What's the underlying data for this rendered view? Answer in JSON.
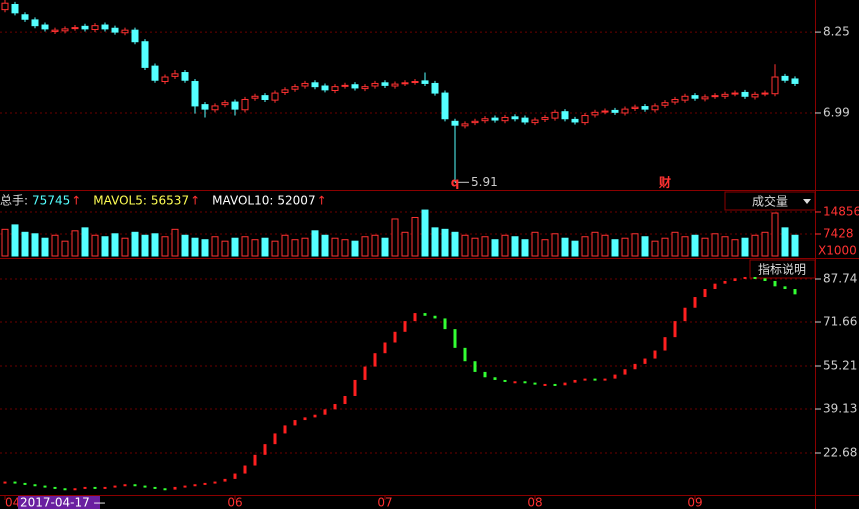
{
  "chart_data": [
    {
      "type": "candlestick",
      "rise_color": "#ff3232",
      "fall_color": "#54ffff",
      "open": [
        8.6,
        8.68,
        8.52,
        8.44,
        8.36,
        8.26,
        8.27,
        8.31,
        8.34,
        8.29,
        8.36,
        8.31,
        8.24,
        8.28,
        8.1,
        7.72,
        7.48,
        7.56,
        7.62,
        7.48,
        7.12,
        7.04,
        7.12,
        7.16,
        7.04,
        7.22,
        7.26,
        7.19,
        7.31,
        7.36,
        7.41,
        7.46,
        7.41,
        7.34,
        7.41,
        7.43,
        7.37,
        7.41,
        7.46,
        7.41,
        7.45,
        7.47,
        7.49,
        7.45,
        7.3,
        6.86,
        6.79,
        6.84,
        6.87,
        6.91,
        6.87,
        6.93,
        6.91,
        6.84,
        6.89,
        6.91,
        7.01,
        6.89,
        6.84,
        6.96,
        7.01,
        7.03,
        6.99,
        7.06,
        7.09,
        7.04,
        7.11,
        7.16,
        7.19,
        7.26,
        7.21,
        7.25,
        7.25,
        7.29,
        7.31,
        7.24,
        7.29,
        7.29,
        7.56,
        7.52
      ],
      "high": [
        8.75,
        8.72,
        8.56,
        8.48,
        8.4,
        8.32,
        8.34,
        8.36,
        8.38,
        8.39,
        8.4,
        8.35,
        8.32,
        8.32,
        8.14,
        7.76,
        7.59,
        7.66,
        7.66,
        7.52,
        7.16,
        7.14,
        7.19,
        7.2,
        7.24,
        7.29,
        7.3,
        7.34,
        7.39,
        7.44,
        7.49,
        7.5,
        7.45,
        7.44,
        7.46,
        7.47,
        7.44,
        7.49,
        7.5,
        7.48,
        7.5,
        7.52,
        7.62,
        7.49,
        7.34,
        6.9,
        6.86,
        6.9,
        6.94,
        6.95,
        6.96,
        6.97,
        6.95,
        6.92,
        6.96,
        7.04,
        7.05,
        6.93,
        6.99,
        7.04,
        7.06,
        7.07,
        7.09,
        7.12,
        7.13,
        7.14,
        7.19,
        7.24,
        7.29,
        7.3,
        7.28,
        7.3,
        7.32,
        7.34,
        7.35,
        7.32,
        7.34,
        7.75,
        7.6,
        7.56
      ],
      "low": [
        8.56,
        8.51,
        8.41,
        8.31,
        8.26,
        8.22,
        8.23,
        8.27,
        8.26,
        8.25,
        8.26,
        8.21,
        8.2,
        8.06,
        7.66,
        7.46,
        7.44,
        7.52,
        7.46,
        6.98,
        6.92,
        7.0,
        7.08,
        6.95,
        7.0,
        7.18,
        7.16,
        7.15,
        7.27,
        7.32,
        7.37,
        7.36,
        7.31,
        7.3,
        7.37,
        7.34,
        7.33,
        7.37,
        7.38,
        7.37,
        7.41,
        7.43,
        7.41,
        7.26,
        6.86,
        5.91,
        6.75,
        6.8,
        6.83,
        6.84,
        6.83,
        6.86,
        6.81,
        6.8,
        6.85,
        6.87,
        6.86,
        6.81,
        6.8,
        6.92,
        6.97,
        6.96,
        6.95,
        7.02,
        7.01,
        7.0,
        7.07,
        7.12,
        7.15,
        7.18,
        7.17,
        7.21,
        7.21,
        7.25,
        7.21,
        7.2,
        7.25,
        7.25,
        7.46,
        7.41
      ],
      "close": [
        8.7,
        8.55,
        8.45,
        8.35,
        8.3,
        8.28,
        8.3,
        8.32,
        8.3,
        8.35,
        8.3,
        8.25,
        8.28,
        8.1,
        7.7,
        7.5,
        7.55,
        7.6,
        7.5,
        7.1,
        7.05,
        7.1,
        7.15,
        7.05,
        7.2,
        7.25,
        7.2,
        7.3,
        7.35,
        7.4,
        7.45,
        7.4,
        7.35,
        7.4,
        7.42,
        7.38,
        7.4,
        7.45,
        7.42,
        7.44,
        7.46,
        7.48,
        7.45,
        7.3,
        6.9,
        6.8,
        6.82,
        6.86,
        6.9,
        6.88,
        6.92,
        6.9,
        6.85,
        6.88,
        6.92,
        7.0,
        6.9,
        6.85,
        6.95,
        7.0,
        7.02,
        7.0,
        7.05,
        7.08,
        7.05,
        7.1,
        7.15,
        7.2,
        7.25,
        7.22,
        7.24,
        7.26,
        7.28,
        7.3,
        7.25,
        7.28,
        7.3,
        7.55,
        7.5,
        7.45
      ],
      "ylim": [
        5.79,
        8.75
      ],
      "yticks": [
        8.25,
        6.99
      ],
      "markers": [
        {
          "index": 45,
          "text": "q"
        },
        {
          "index": 66,
          "text": "财"
        }
      ]
    },
    {
      "type": "bar",
      "dropdown": "成交量",
      "arrow": "↑",
      "legend": [
        {
          "name": "总手:",
          "value": 75745,
          "color": "#54ffff"
        },
        {
          "name": "MAVOL5:",
          "value": 56537,
          "color": "#ffff54"
        },
        {
          "name": "MAVOL10:",
          "value": 52007,
          "color": "#ffffff"
        }
      ],
      "values": [
        9000,
        10500,
        8000,
        7500,
        6000,
        7000,
        5000,
        8500,
        9500,
        7000,
        6500,
        7500,
        6000,
        8000,
        7000,
        7500,
        6500,
        9000,
        7000,
        6000,
        5500,
        6500,
        5000,
        6000,
        6500,
        5500,
        6000,
        5000,
        7000,
        5500,
        6000,
        8500,
        7000,
        6000,
        5500,
        5000,
        6500,
        7000,
        6000,
        12500,
        8000,
        13000,
        15500,
        9500,
        9000,
        8000,
        7000,
        6000,
        6500,
        5500,
        7000,
        6500,
        5500,
        8000,
        5500,
        7500,
        6000,
        5000,
        6500,
        8000,
        7000,
        5500,
        6000,
        7500,
        6500,
        5000,
        6000,
        8000,
        6500,
        7000,
        6000,
        7500,
        6500,
        5500,
        6000,
        7000,
        8000,
        14500,
        9500,
        7000
      ],
      "ylim": [
        0,
        16200
      ],
      "yticks": [
        7428,
        14856
      ],
      "unit_label": "X1000"
    },
    {
      "type": "indicator",
      "rise_color": "#ff2020",
      "fall_color": "#33ff33",
      "button": "指标说明",
      "values": [
        12,
        11.5,
        11,
        10.5,
        10,
        9.5,
        9,
        9.5,
        10,
        9.5,
        10,
        10.5,
        11,
        10.5,
        10,
        9.5,
        9,
        10,
        10.5,
        11,
        11.5,
        12,
        13,
        15,
        18,
        22,
        26,
        30,
        33,
        35,
        36,
        37,
        39,
        41,
        44,
        50,
        55,
        60,
        64,
        68,
        72,
        75,
        74,
        73,
        69,
        62,
        57,
        53,
        51,
        50,
        49.5,
        49.5,
        49,
        48.5,
        48.5,
        48,
        49,
        50,
        50.5,
        50,
        50.5,
        52,
        54,
        56,
        58,
        61,
        66,
        72,
        77,
        81,
        84,
        86,
        87,
        88,
        88.5,
        88,
        87,
        85,
        84,
        82
      ],
      "ylim": [
        6.98,
        94.1
      ],
      "yticks": [
        22.68,
        39.13,
        55.21,
        71.66,
        87.74
      ],
      "xticks": [
        {
          "value": 0,
          "label": "04"
        },
        {
          "value": 23,
          "label": "06"
        },
        {
          "value": 38,
          "label": "07"
        },
        {
          "value": 53,
          "label": "08"
        },
        {
          "value": 69,
          "label": "09"
        }
      ],
      "cursor_date": "2017-04-17 —"
    }
  ]
}
